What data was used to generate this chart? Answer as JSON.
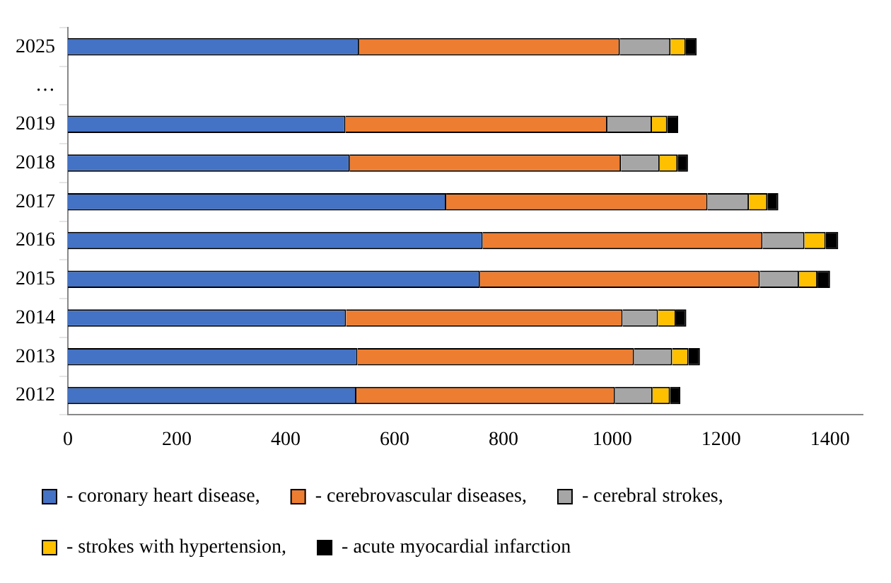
{
  "chart_data": {
    "type": "bar",
    "orientation": "horizontal",
    "stacked": true,
    "categories": [
      "2025",
      "…",
      "2019",
      "2018",
      "2017",
      "2016",
      "2015",
      "2014",
      "2013",
      "2012"
    ],
    "series": [
      {
        "name": "- coronary heart disease,",
        "color": "#4472c4",
        "values": [
          535,
          null,
          510,
          518,
          695,
          762,
          757,
          511,
          532,
          530
        ]
      },
      {
        "name": "- cerebrovascular diseases,",
        "color": "#ed7d31",
        "values": [
          479,
          null,
          481,
          498,
          480,
          514,
          514,
          508,
          508,
          475
        ]
      },
      {
        "name": "- cerebral strokes,",
        "color": "#a6a6a6",
        "values": [
          93,
          null,
          82,
          71,
          76,
          77,
          72,
          65,
          70,
          69
        ]
      },
      {
        "name": "- strokes with hypertension,",
        "color": "#ffc000",
        "values": [
          28,
          null,
          28,
          33,
          34,
          39,
          34,
          33,
          30,
          32
        ]
      },
      {
        "name": "- acute myocardial infarction",
        "color": "#000000",
        "values": [
          20,
          null,
          20,
          19,
          20,
          23,
          23,
          19,
          21,
          19
        ]
      }
    ],
    "xlim": [
      0,
      1460
    ],
    "xticks": [
      0,
      200,
      400,
      600,
      800,
      1000,
      1200,
      1400
    ],
    "grid": false,
    "legend": "bottom"
  }
}
